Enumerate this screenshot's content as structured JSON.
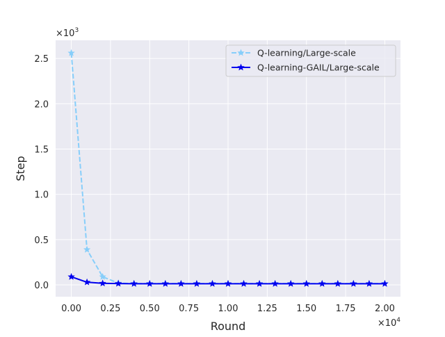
{
  "chart_data": {
    "type": "line",
    "title": "",
    "xlabel": "Round",
    "ylabel": "Step",
    "x_offset_label": "×10",
    "x_offset_exp": "4",
    "y_offset_label": "×10",
    "y_offset_exp": "3",
    "xlim": [
      -0.1,
      2.1
    ],
    "ylim": [
      -0.13,
      2.7
    ],
    "xticks": [
      0.0,
      0.25,
      0.5,
      0.75,
      1.0,
      1.25,
      1.5,
      1.75,
      2.0
    ],
    "xtick_labels": [
      "0.00",
      "0.25",
      "0.50",
      "0.75",
      "1.00",
      "1.25",
      "1.50",
      "1.75",
      "2.00"
    ],
    "yticks": [
      0.0,
      0.5,
      1.0,
      1.5,
      2.0,
      2.5
    ],
    "ytick_labels": [
      "0.0",
      "0.5",
      "1.0",
      "1.5",
      "2.0",
      "2.5"
    ],
    "grid": true,
    "legend_position": "top-right",
    "x": [
      0.0,
      0.1,
      0.2,
      0.3,
      0.4,
      0.5,
      0.6,
      0.7,
      0.8,
      0.9,
      1.0,
      1.1,
      1.2,
      1.3,
      1.4,
      1.5,
      1.6,
      1.7,
      1.8,
      1.9,
      2.0
    ],
    "series": [
      {
        "name": "Q-learning/Large-scale",
        "color": "#87cefa",
        "dashed": true,
        "values": [
          2.56,
          0.39,
          0.09,
          0.02,
          0.015,
          0.015,
          0.015,
          0.015,
          0.015,
          0.015,
          0.015,
          0.015,
          0.015,
          0.015,
          0.015,
          0.015,
          0.015,
          0.015,
          0.015,
          0.015,
          0.015
        ]
      },
      {
        "name": "Q-learning-GAIL/Large-scale",
        "color": "#0000ee",
        "dashed": false,
        "values": [
          0.09,
          0.03,
          0.018,
          0.015,
          0.013,
          0.013,
          0.013,
          0.013,
          0.013,
          0.013,
          0.013,
          0.013,
          0.013,
          0.013,
          0.013,
          0.013,
          0.013,
          0.013,
          0.013,
          0.013,
          0.013
        ]
      }
    ]
  }
}
